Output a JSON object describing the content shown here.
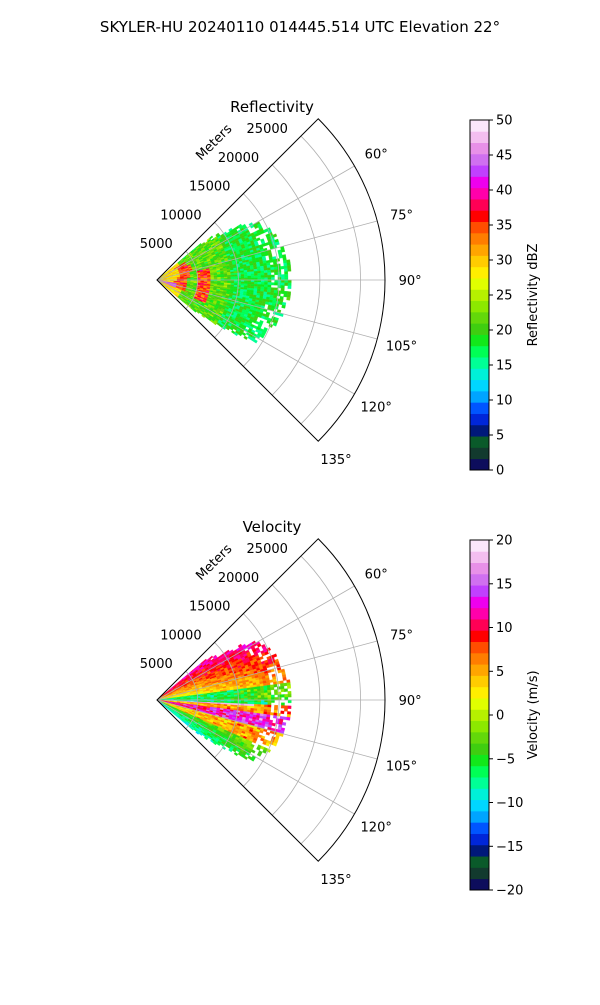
{
  "figure": {
    "suptitle": "SKYLER-HU  20240110  014445.514 UTC Elevation 22°"
  },
  "chart_data": [
    {
      "type": "heatmap",
      "subtype": "polar-sector",
      "title": "Reflectivity",
      "radial_label": "Meters",
      "radial_ticks": [
        "5000",
        "10000",
        "15000",
        "20000",
        "25000"
      ],
      "radial_values": [
        5000,
        10000,
        15000,
        20000,
        25000
      ],
      "rmax": 28000,
      "angle_ticks": [
        "60°",
        "75°",
        "90°",
        "105°",
        "120°",
        "135°"
      ],
      "angle_values": [
        60,
        75,
        90,
        105,
        120,
        135
      ],
      "sector": [
        45,
        135
      ],
      "data_extent": [
        50,
        130
      ],
      "data_max_range": 16500,
      "grid": true,
      "colorbar": {
        "label": "Reflectivity dBZ",
        "range": [
          0,
          50
        ],
        "ticks": [
          "0",
          "5",
          "10",
          "15",
          "20",
          "25",
          "30",
          "35",
          "40",
          "45",
          "50"
        ],
        "tick_values": [
          0,
          5,
          10,
          15,
          20,
          25,
          30,
          35,
          40,
          45,
          50
        ],
        "colors": [
          "#0d0d5c",
          "#123a2e",
          "#0a5a2a",
          "#00187a",
          "#0026d9",
          "#0055ff",
          "#00a4ff",
          "#00d6ff",
          "#00f0d8",
          "#00ff96",
          "#00ff55",
          "#12e81a",
          "#3fce10",
          "#63d80a",
          "#8ce800",
          "#b6f000",
          "#e0ff00",
          "#ffee00",
          "#ffcc00",
          "#ffa500",
          "#ff7d00",
          "#ff4d00",
          "#ff0000",
          "#ff0055",
          "#ff00aa",
          "#ee00ee",
          "#c040ff",
          "#d070f0",
          "#e890e8",
          "#f4bef0",
          "#fbe6fb"
        ]
      },
      "pattern": "reflectivity"
    },
    {
      "type": "heatmap",
      "subtype": "polar-sector",
      "title": "Velocity",
      "radial_label": "Meters",
      "radial_ticks": [
        "5000",
        "10000",
        "15000",
        "20000",
        "25000"
      ],
      "radial_values": [
        5000,
        10000,
        15000,
        20000,
        25000
      ],
      "rmax": 28000,
      "angle_ticks": [
        "60°",
        "75°",
        "90°",
        "105°",
        "120°",
        "135°"
      ],
      "angle_values": [
        60,
        75,
        90,
        105,
        120,
        135
      ],
      "sector": [
        45,
        135
      ],
      "data_extent": [
        50,
        130
      ],
      "data_max_range": 16500,
      "grid": true,
      "colorbar": {
        "label": "Velocity (m/s)",
        "range": [
          -20,
          20
        ],
        "ticks": [
          "−20",
          "−15",
          "−10",
          "−5",
          "0",
          "5",
          "10",
          "15",
          "20"
        ],
        "tick_values": [
          -20,
          -15,
          -10,
          -5,
          0,
          5,
          10,
          15,
          20
        ],
        "colors": [
          "#0d0d5c",
          "#123a2e",
          "#0a5a2a",
          "#00187a",
          "#0026d9",
          "#0055ff",
          "#00a4ff",
          "#00d6ff",
          "#00f0d8",
          "#00ff96",
          "#00ff55",
          "#12e81a",
          "#3fce10",
          "#63d80a",
          "#8ce800",
          "#b6f000",
          "#e0ff00",
          "#ffee00",
          "#ffcc00",
          "#ffa500",
          "#ff7d00",
          "#ff4d00",
          "#ff0000",
          "#ff0055",
          "#ff00aa",
          "#ee00ee",
          "#c040ff",
          "#d070f0",
          "#e890e8",
          "#f4bef0",
          "#fbe6fb"
        ]
      },
      "pattern": "velocity"
    }
  ]
}
